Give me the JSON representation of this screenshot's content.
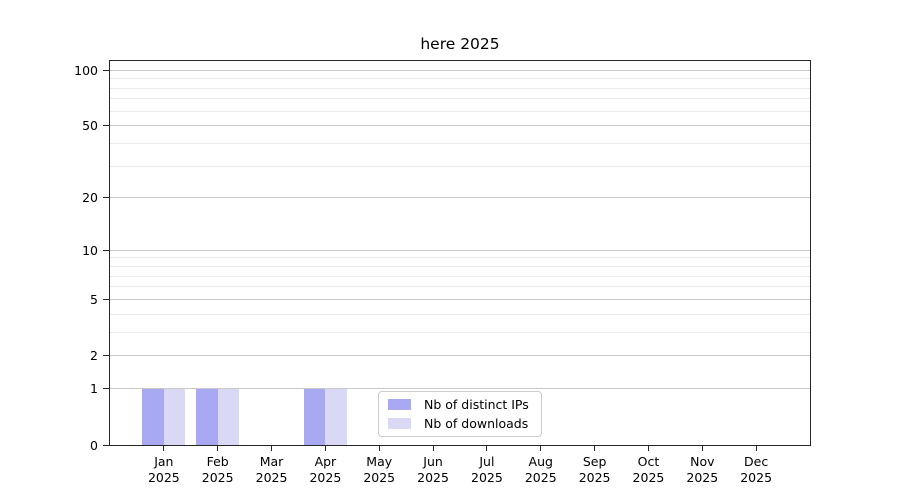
{
  "chart_data": {
    "type": "bar",
    "title": "here 2025",
    "categories": [
      "Jan",
      "Feb",
      "Mar",
      "Apr",
      "May",
      "Jun",
      "Jul",
      "Aug",
      "Sep",
      "Oct",
      "Nov",
      "Dec"
    ],
    "tick_year": "2025",
    "series": [
      {
        "name": "Nb of distinct IPs",
        "color": "#a9a9f3",
        "values": [
          1,
          1,
          0,
          1,
          0,
          0,
          0,
          0,
          0,
          0,
          0,
          0
        ]
      },
      {
        "name": "Nb of downloads",
        "color": "#d9d9f6",
        "values": [
          1,
          1,
          0,
          1,
          0,
          0,
          0,
          0,
          0,
          0,
          0,
          0
        ]
      }
    ],
    "yscale": "log1p",
    "ylim": [
      0,
      112
    ],
    "ytick_major": [
      0,
      1,
      2,
      5,
      10,
      20,
      50,
      100
    ],
    "ytick_minor": [
      3,
      4,
      6,
      7,
      8,
      9,
      30,
      40,
      60,
      70,
      80,
      90
    ],
    "grid": "horizontal",
    "legend_position": "inside-bottom-center",
    "colors": {
      "axis": "#262626",
      "grid_major": "#c9c9c9",
      "grid_minor": "#ebebeb",
      "legend_border": "#cccccc",
      "background": "#ffffff"
    }
  }
}
